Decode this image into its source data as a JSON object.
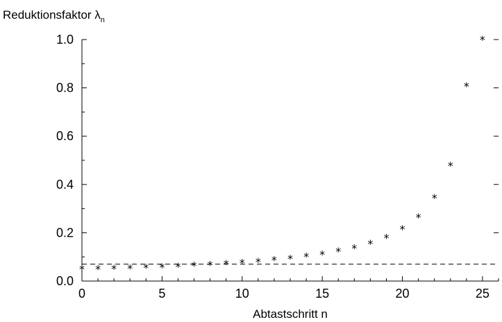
{
  "chart_data": {
    "type": "scatter",
    "ylabel": {
      "main": "Reduktionsfaktor λ",
      "subscript": "n"
    },
    "xlabel": "Abtastschritt n",
    "xlim": [
      0,
      26
    ],
    "ylim": [
      0.0,
      1.0
    ],
    "x_ticks": [
      0,
      5,
      10,
      15,
      20,
      25
    ],
    "x_tick_labels": [
      "0",
      "5",
      "10",
      "15",
      "20",
      "25"
    ],
    "y_ticks": [
      0.0,
      0.2,
      0.4,
      0.6,
      0.8,
      1.0
    ],
    "y_tick_labels": [
      "0.0",
      "0.2",
      "0.4",
      "0.6",
      "0.8",
      "1.0"
    ],
    "grid": false,
    "marker": "*",
    "reference_line": {
      "y": 0.07,
      "style": "dashed"
    },
    "series": [
      {
        "x": [
          0,
          1,
          2,
          3,
          4,
          5,
          6,
          7,
          8,
          9,
          10,
          11,
          12,
          13,
          14,
          15,
          16,
          17,
          18,
          19,
          20,
          21,
          22,
          23,
          24,
          25
        ],
        "y": [
          0.051,
          0.051,
          0.052,
          0.053,
          0.056,
          0.058,
          0.061,
          0.064,
          0.068,
          0.072,
          0.076,
          0.081,
          0.087,
          0.094,
          0.102,
          0.111,
          0.123,
          0.137,
          0.155,
          0.18,
          0.215,
          0.265,
          0.345,
          0.478,
          0.808,
          1.0
        ]
      }
    ]
  }
}
